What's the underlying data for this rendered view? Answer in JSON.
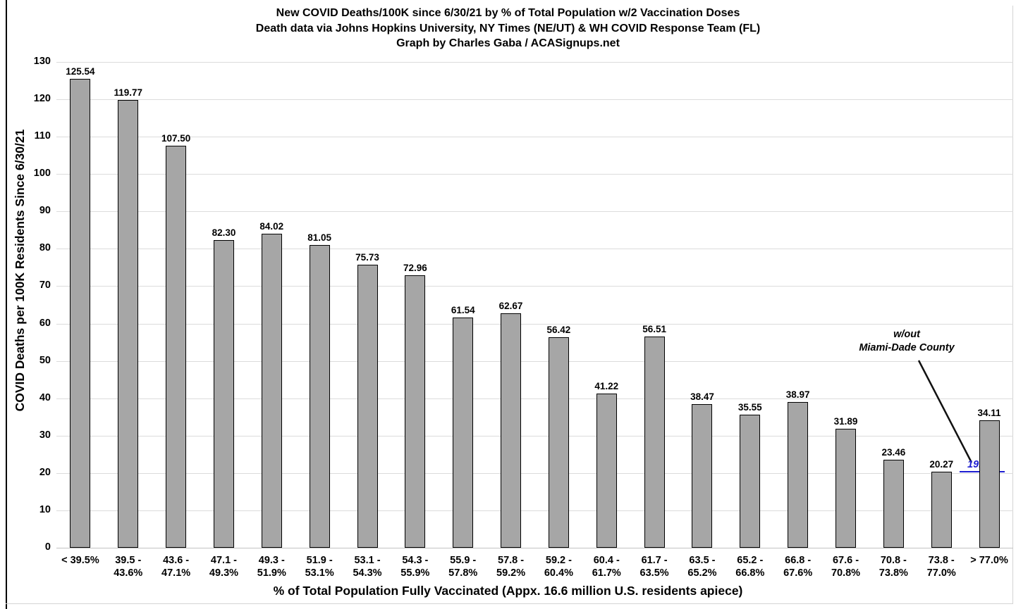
{
  "chart_data": {
    "type": "bar",
    "title": "New COVID Deaths/100K since 6/30/21 by % of Total Population w/2 Vaccination Doses",
    "subtitle": "Death data via Johns Hopkins University, NY Times (NE/UT) & WH COVID Response Team (FL)",
    "credit": "Graph by Charles Gaba / ACASignups.net",
    "xlabel": "% of Total Population Fully Vaccinated (Appx. 16.6 million U.S. residents apiece)",
    "ylabel": "COVID Deaths per 100K Residents Since 6/30/21",
    "ylim": [
      0,
      130
    ],
    "ytick_step": 10,
    "grid": true,
    "legend": "none",
    "bar_color": "#a6a6a6",
    "bar_border_color": "#000000",
    "categories": [
      "< 39.5%",
      "39.5 -\n43.6%",
      "43.6 -\n47.1%",
      "47.1 -\n49.3%",
      "49.3 -\n51.9%",
      "51.9 -\n53.1%",
      "53.1 -\n54.3%",
      "54.3 -\n55.9%",
      "55.9 -\n57.8%",
      "57.8 -\n59.2%",
      "59.2 -\n60.4%",
      "60.4 -\n61.7%",
      "61.7 -\n63.5%",
      "63.5 -\n65.2%",
      "65.2 -\n66.8%",
      "66.8 -\n67.6%",
      "67.6 -\n70.8%",
      "70.8 -\n73.8%",
      "73.8 -\n77.0%",
      "> 77.0%"
    ],
    "values": [
      125.54,
      119.77,
      107.5,
      82.3,
      84.02,
      81.05,
      75.73,
      72.96,
      61.54,
      62.67,
      56.42,
      41.22,
      56.51,
      38.47,
      35.55,
      38.97,
      31.89,
      23.46,
      20.27,
      34.11
    ],
    "annotation": {
      "text_line1": "w/out",
      "text_line2": "Miami-Dade County",
      "value_label": "19.75*",
      "value_color": "#1f1fd2",
      "line_color": "#111111"
    }
  }
}
